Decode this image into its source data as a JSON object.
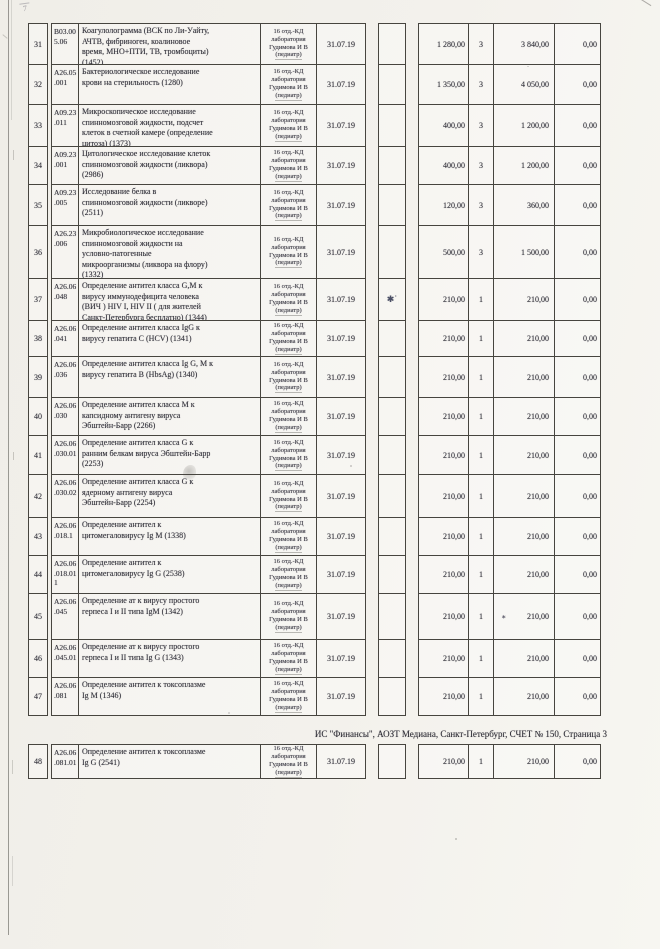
{
  "footer": {
    "text": "ИС \"Финансы\", АОЗТ Медиана, Санкт-Петербург, СЧЕТ № 150, Страница 3"
  },
  "artifacts": {
    "top_left_mark": "7",
    "row37_mark": "✱˙",
    "row45_sum_mark": "⁎"
  },
  "table": {
    "rows": [
      {
        "num": "31",
        "code": [
          "В03.00",
          "5.06"
        ],
        "desc": [
          "Коагулолограмма (ВСК по Ли-Уайту,",
          "АЧТВ, фибриноген, коалиновое",
          "время, МНО+ПТИ, ТВ, тромбоциты)",
          "(1452)"
        ],
        "perf": [
          "16 отд.-КД",
          "лаборатория",
          "Гудимова И В",
          "(педиатр)"
        ],
        "date": "31.07.19",
        "mark": "",
        "price": "1 280,00",
        "qty": "3",
        "sum": "3 840,00",
        "sum_mark": "",
        "zero": "0,00"
      },
      {
        "num": "32",
        "code": [
          "А26.05",
          ".001"
        ],
        "desc": [
          "Бактериологическое исследование",
          "крови на стерильность (1280)"
        ],
        "perf": [
          "16 отд.-КД",
          "лаборатория",
          "Гудимова И В",
          "(педиатр)"
        ],
        "date": "31.07.19",
        "mark": "",
        "price": "1 350,00",
        "qty": "3",
        "sum": "4 050,00",
        "sum_mark": "",
        "zero": "0,00"
      },
      {
        "num": "33",
        "code": [
          "А09.23",
          ".011"
        ],
        "desc": [
          "Микроскопическое исследование",
          "спинномозговой жидкости, подсчет",
          "клеток в счетной камере (определение",
          "цитоза) (1373)"
        ],
        "perf": [
          "16 отд.-КД",
          "лаборатория",
          "Гудимова И В",
          "(педиатр)"
        ],
        "date": "31.07.19",
        "mark": "",
        "price": "400,00",
        "qty": "3",
        "sum": "1 200,00",
        "sum_mark": "",
        "zero": "0,00"
      },
      {
        "num": "34",
        "code": [
          "А09.23",
          ".001"
        ],
        "desc": [
          "Цитологическое исследование клеток",
          "спинномозговой жидкости (ликвора)",
          "(2986)"
        ],
        "perf": [
          "16 отд.-КД",
          "лаборатория",
          "Гудимова И В",
          "(педиатр)"
        ],
        "date": "31.07.19",
        "mark": "",
        "price": "400,00",
        "qty": "3",
        "sum": "1 200,00",
        "sum_mark": "",
        "zero": "0,00"
      },
      {
        "num": "35",
        "code": [
          "А09.23",
          ".005"
        ],
        "desc": [
          "Исследование белка в",
          "спинномозговой жидкости (ликворе)",
          "(2511)"
        ],
        "perf": [
          "16 отд.-КД",
          "лаборатория",
          "Гудимова И В",
          "(педиатр)"
        ],
        "date": "31.07.19",
        "mark": "",
        "price": "120,00",
        "qty": "3",
        "sum": "360,00",
        "sum_mark": "",
        "zero": "0,00"
      },
      {
        "num": "36",
        "code": [
          "А26.23",
          ".006"
        ],
        "desc": [
          "Микробиологическое исследование",
          "спинномозговой жидкости на",
          "условно-патогенные",
          "микроорганизмы (ликвора на флору)",
          "(1332)"
        ],
        "perf": [
          "16 отд.-КД",
          "лаборатория",
          "Гудимова И В",
          "(педиатр)"
        ],
        "date": "31.07.19",
        "mark": "",
        "price": "500,00",
        "qty": "3",
        "sum": "1 500,00",
        "sum_mark": "",
        "zero": "0,00"
      },
      {
        "num": "37",
        "code": [
          "А26.06",
          ".048"
        ],
        "desc": [
          "Определение антител класса G,M к",
          "вирусу иммунодефицита человека",
          "(ВИЧ ) HIV I, HIV II ( для жителей",
          "Санкт-Петербурга бесплатно) (1344)"
        ],
        "perf": [
          "16 отд.-КД",
          "лаборатория",
          "Гудимова И В",
          "(педиатр)"
        ],
        "date": "31.07.19",
        "mark": "✱˙",
        "price": "210,00",
        "qty": "1",
        "sum": "210,00",
        "sum_mark": "",
        "zero": "0,00"
      },
      {
        "num": "38",
        "code": [
          "А26.06",
          ".041"
        ],
        "desc": [
          "Определение антител класса IgG к",
          "вирусу  гепатита С (HCV) (1341)"
        ],
        "perf": [
          "16 отд.-КД",
          "лаборатория",
          "Гудимова И В",
          "(педиатр)"
        ],
        "date": "31.07.19",
        "mark": "",
        "price": "210,00",
        "qty": "1",
        "sum": "210,00",
        "sum_mark": "",
        "zero": "0,00"
      },
      {
        "num": "39",
        "code": [
          "А26.06",
          ".036"
        ],
        "desc": [
          "Определение антител класса Ig G, М к",
          "вирусу  гепатита В (HbsAg) (1340)"
        ],
        "perf": [
          "16 отд.-КД",
          "лаборатория",
          "Гудимова И В",
          "(педиатр)"
        ],
        "date": "31.07.19",
        "mark": "",
        "price": "210,00",
        "qty": "1",
        "sum": "210,00",
        "sum_mark": "",
        "zero": "0,00"
      },
      {
        "num": "40",
        "code": [
          "А26.06",
          ".030"
        ],
        "desc": [
          "Определение антител класса М к",
          "капсидному антигену вируса",
          "Эбштейн-Барр (2266)"
        ],
        "perf": [
          "16 отд.-КД",
          "лаборатория",
          "Гудимова И В",
          "(педиатр)"
        ],
        "date": "31.07.19",
        "mark": "",
        "price": "210,00",
        "qty": "1",
        "sum": "210,00",
        "sum_mark": "",
        "zero": "0,00"
      },
      {
        "num": "41",
        "code": [
          "А26.06",
          ".030.01"
        ],
        "desc": [
          "Определение антител класса G к",
          "ранним белкам вируса Эбштейн-Барр",
          "(2253)"
        ],
        "perf": [
          "16 отд.-КД",
          "лаборатория",
          "Гудимова И В",
          "(педиатр)"
        ],
        "date": "31.07.19",
        "mark": "",
        "price": "210,00",
        "qty": "1",
        "sum": "210,00",
        "sum_mark": "",
        "zero": "0,00"
      },
      {
        "num": "42",
        "code": [
          "А26.06",
          ".030.02"
        ],
        "desc": [
          "Определение антител класса G к",
          "ядерному антигену вируса",
          "Эбштейн-Барр (2254)"
        ],
        "perf": [
          "16 отд.-КД",
          "лаборатория",
          "Гудимова И В",
          "(педиатр)"
        ],
        "date": "31.07.19",
        "mark": "",
        "price": "210,00",
        "qty": "1",
        "sum": "210,00",
        "sum_mark": "",
        "zero": "0,00"
      },
      {
        "num": "43",
        "code": [
          "А26.06",
          ".018.1"
        ],
        "desc": [
          "Определение антител к",
          "цитомегаловирусу Ig M (1338)"
        ],
        "perf": [
          "16 отд.-КД",
          "лаборатория",
          "Гудимова И В",
          "(педиатр)"
        ],
        "date": "31.07.19",
        "mark": "",
        "price": "210,00",
        "qty": "1",
        "sum": "210,00",
        "sum_mark": "",
        "zero": "0,00"
      },
      {
        "num": "44",
        "code": [
          "А26.06",
          ".018.01",
          "1"
        ],
        "desc": [
          "Определение антител к",
          "цитомегаловирусу Ig G (2538)"
        ],
        "perf": [
          "16 отд.-КД",
          "лаборатория",
          "Гудимова И В",
          "(педиатр)"
        ],
        "date": "31.07.19",
        "mark": "",
        "price": "210,00",
        "qty": "1",
        "sum": "210,00",
        "sum_mark": "",
        "zero": "0,00"
      },
      {
        "num": "45",
        "code": [
          "А26.06",
          ".045"
        ],
        "desc": [
          "Определение ат к вирусу простого",
          "герпеса I и II типа IgM (1342)"
        ],
        "perf": [
          "16 отд.-КД",
          "лаборатория",
          "Гудимова И В",
          "(педиатр)"
        ],
        "date": "31.07.19",
        "mark": "",
        "price": "210,00",
        "qty": "1",
        "sum": "210,00",
        "sum_mark": "⁎",
        "zero": "0,00"
      },
      {
        "num": "46",
        "code": [
          "А26.06",
          ".045.01"
        ],
        "desc": [
          "Определение ат к вирусу простого",
          "герпеса I и II типа  Ig G (1343)"
        ],
        "perf": [
          "16 отд.-КД",
          "лаборатория",
          "Гудимова И В",
          "(педиатр)"
        ],
        "date": "31.07.19",
        "mark": "",
        "price": "210,00",
        "qty": "1",
        "sum": "210,00",
        "sum_mark": "",
        "zero": "0,00"
      },
      {
        "num": "47",
        "code": [
          "А26.06",
          ".081"
        ],
        "desc": [
          "Определение антител к токсоплазме",
          "Ig M (1346)"
        ],
        "perf": [
          "16 отд.-КД",
          "лаборатория",
          "Гудимова И В",
          "(педиатр)"
        ],
        "date": "31.07.19",
        "mark": "",
        "price": "210,00",
        "qty": "1",
        "sum": "210,00",
        "sum_mark": "",
        "zero": "0,00"
      }
    ],
    "row48": {
      "num": "48",
      "code": [
        "А26.06",
        ".081.01"
      ],
      "desc": [
        "Определение антител к токсоплазме",
        "Ig G (2541)"
      ],
      "perf": [
        "16 отд.-КД",
        "лаборатория",
        "Гудимова И В",
        "(педиатр)"
      ],
      "date": "31.07.19",
      "mark": "",
      "price": "210,00",
      "qty": "1",
      "sum": "210,00",
      "sum_mark": "",
      "zero": "0,00"
    }
  }
}
